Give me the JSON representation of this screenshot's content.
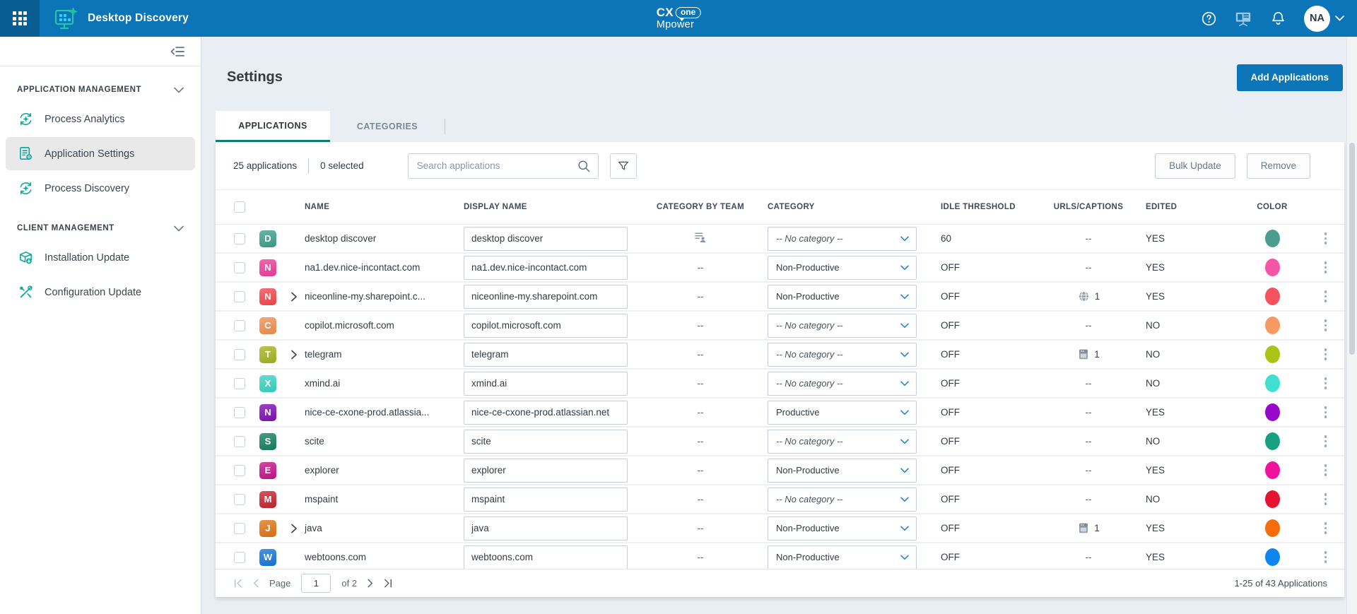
{
  "header": {
    "app_title": "Desktop Discovery",
    "logo": {
      "cx": "CX",
      "one": "one",
      "line2": "Mpower"
    },
    "avatar_initials": "NA"
  },
  "sidebar": {
    "sections": [
      {
        "label": "APPLICATION MANAGEMENT",
        "items": [
          {
            "label": "Process Analytics",
            "icon": "process-analytics-icon",
            "active": false
          },
          {
            "label": "Application Settings",
            "icon": "application-settings-icon",
            "active": true
          },
          {
            "label": "Process Discovery",
            "icon": "process-discovery-icon",
            "active": false
          }
        ]
      },
      {
        "label": "CLIENT MANAGEMENT",
        "items": [
          {
            "label": "Installation Update",
            "icon": "installation-update-icon",
            "active": false
          },
          {
            "label": "Configuration Update",
            "icon": "configuration-update-icon",
            "active": false
          }
        ]
      }
    ]
  },
  "main": {
    "page_title": "Settings",
    "add_button_label": "Add Applications",
    "tabs": [
      {
        "label": "APPLICATIONS",
        "active": true
      },
      {
        "label": "CATEGORIES",
        "active": false
      }
    ],
    "toolbar": {
      "count_label": "25 applications",
      "selected_label": "0 selected",
      "search_placeholder": "Search applications",
      "bulk_update_label": "Bulk Update",
      "remove_label": "Remove"
    },
    "table": {
      "columns": [
        "NAME",
        "DISPLAY NAME",
        "CATEGORY BY TEAM",
        "CATEGORY",
        "IDLE THRESHOLD",
        "URLS/CAPTIONS",
        "EDITED",
        "COLOR"
      ],
      "empty_value": "--",
      "rows": [
        {
          "initial": "D",
          "badge_color": "#3f9f8b",
          "expandable": false,
          "name": "desktop discover",
          "display_name": "desktop discover",
          "category_by_team": "team-icon",
          "category": "-- No category --",
          "idle_threshold": "60",
          "urls": null,
          "edited": "YES",
          "color": "#4a9d8f"
        },
        {
          "initial": "N",
          "badge_color": "#ee3d9a",
          "expandable": false,
          "name": "na1.dev.nice-incontact.com",
          "display_name": "na1.dev.nice-incontact.com",
          "category_by_team": "--",
          "category": "Non-Productive",
          "idle_threshold": "OFF",
          "urls": null,
          "edited": "YES",
          "color": "#f655a7"
        },
        {
          "initial": "N",
          "badge_color": "#f2484e",
          "expandable": true,
          "name": "niceonline-my.sharepoint.c...",
          "display_name": "niceonline-my.sharepoint.com",
          "category_by_team": "--",
          "category": "Non-Productive",
          "idle_threshold": "OFF",
          "urls": {
            "icon": "globe-icon",
            "count": "1"
          },
          "edited": "YES",
          "color": "#f5525e"
        },
        {
          "initial": "C",
          "badge_color": "#f09050",
          "expandable": false,
          "name": "copilot.microsoft.com",
          "display_name": "copilot.microsoft.com",
          "category_by_team": "--",
          "category": "-- No category --",
          "idle_threshold": "OFF",
          "urls": null,
          "edited": "NO",
          "color": "#f69a62"
        },
        {
          "initial": "T",
          "badge_color": "#a6b322",
          "expandable": true,
          "name": "telegram",
          "display_name": "telegram",
          "category_by_team": "--",
          "category": "-- No category --",
          "idle_threshold": "OFF",
          "urls": {
            "icon": "window-icon",
            "count": "1"
          },
          "edited": "NO",
          "color": "#a9c417"
        },
        {
          "initial": "X",
          "badge_color": "#38d4c3",
          "expandable": false,
          "name": "xmind.ai",
          "display_name": "xmind.ai",
          "category_by_team": "--",
          "category": "-- No category --",
          "idle_threshold": "OFF",
          "urls": null,
          "edited": "NO",
          "color": "#3fe0d0"
        },
        {
          "initial": "N",
          "badge_color": "#7d10b5",
          "expandable": false,
          "name": "nice-ce-cxone-prod.atlassia...",
          "display_name": "nice-ce-cxone-prod.atlassian.net",
          "category_by_team": "--",
          "category": "Productive",
          "idle_threshold": "OFF",
          "urls": null,
          "edited": "YES",
          "color": "#9708ca"
        },
        {
          "initial": "S",
          "badge_color": "#12805f",
          "expandable": false,
          "name": "scite",
          "display_name": "scite",
          "category_by_team": "--",
          "category": "-- No category --",
          "idle_threshold": "OFF",
          "urls": null,
          "edited": "NO",
          "color": "#17a181"
        },
        {
          "initial": "E",
          "badge_color": "#c4138a",
          "expandable": false,
          "name": "explorer",
          "display_name": "explorer",
          "category_by_team": "--",
          "category": "Non-Productive",
          "idle_threshold": "OFF",
          "urls": null,
          "edited": "YES",
          "color": "#f2109e"
        },
        {
          "initial": "M",
          "badge_color": "#c62430",
          "expandable": false,
          "name": "mspaint",
          "display_name": "mspaint",
          "category_by_team": "--",
          "category": "-- No category --",
          "idle_threshold": "OFF",
          "urls": null,
          "edited": "NO",
          "color": "#e5132e"
        },
        {
          "initial": "J",
          "badge_color": "#df7518",
          "expandable": true,
          "name": "java",
          "display_name": "java",
          "category_by_team": "--",
          "category": "Non-Productive",
          "idle_threshold": "OFF",
          "urls": {
            "icon": "window-icon",
            "count": "1"
          },
          "edited": "YES",
          "color": "#f66c0a"
        },
        {
          "initial": "W",
          "badge_color": "#1677d9",
          "expandable": false,
          "name": "webtoons.com",
          "display_name": "webtoons.com",
          "category_by_team": "--",
          "category": "Non-Productive",
          "idle_threshold": "OFF",
          "urls": null,
          "edited": "YES",
          "color": "#0e86f2"
        }
      ]
    },
    "pagination": {
      "page_label": "Page",
      "page_value": "1",
      "of_label": "of 2",
      "range_label": "1-25 of 43 Applications"
    }
  },
  "colors": {
    "topbar": "#0b75b7",
    "accent_teal": "#12a6a0",
    "tab_underline": "#0d7b74",
    "primary_button": "#0b75b7"
  }
}
